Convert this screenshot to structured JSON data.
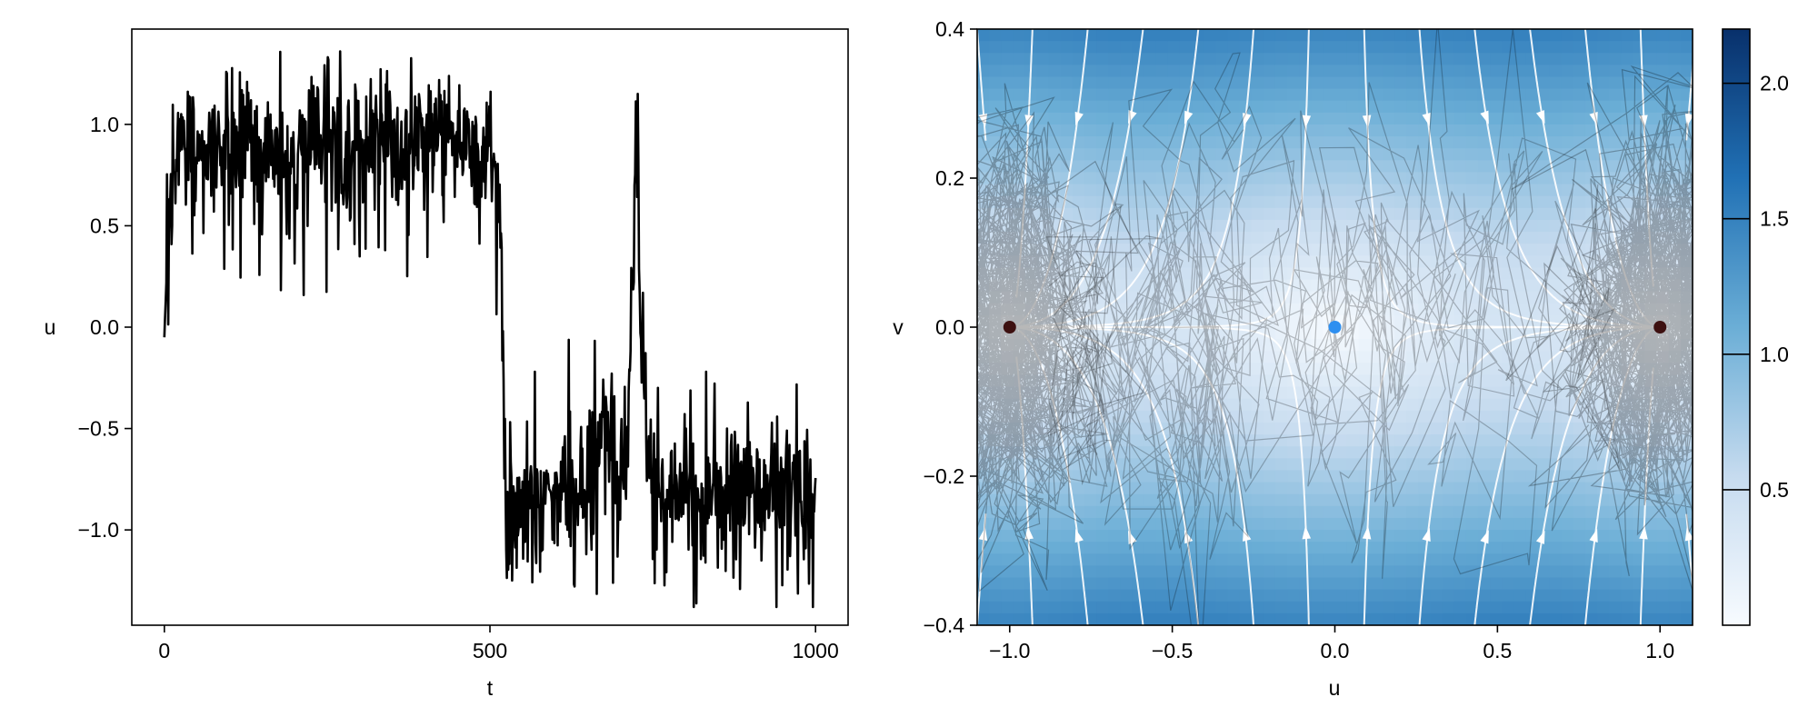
{
  "chart_data": [
    {
      "type": "line",
      "title": "",
      "xlabel": "t",
      "ylabel": "u",
      "xlim": [
        -50,
        1050
      ],
      "ylim": [
        -1.47,
        1.47
      ],
      "x_ticks": [
        0,
        500,
        1000
      ],
      "x_tick_labels": [
        "0",
        "500",
        "1000"
      ],
      "y_ticks": [
        -1.0,
        -0.5,
        0.0,
        0.5,
        1.0
      ],
      "y_tick_labels": [
        "−1.0",
        "−0.5",
        "0.0",
        "0.5",
        "1.0"
      ],
      "grid": false,
      "line_color": "#000000",
      "series": [
        {
          "x": [
            0,
            10,
            30,
            60,
            100,
            150,
            200,
            250,
            300,
            350,
            400,
            450,
            500,
            515,
            525,
            540,
            570,
            600,
            630,
            660,
            680,
            700,
            710,
            720,
            725,
            730,
            745,
            760,
            800,
            850,
            880,
            900,
            950,
            1000
          ],
          "values": [
            -0.05,
            0.85,
            0.95,
            0.85,
            0.88,
            0.9,
            0.82,
            0.95,
            0.92,
            0.88,
            0.95,
            0.9,
            0.85,
            0.7,
            -0.95,
            -0.95,
            -0.9,
            -0.88,
            -0.9,
            -0.75,
            -0.5,
            -0.85,
            -0.7,
            0.4,
            1.15,
            0.3,
            -0.8,
            -0.85,
            -0.8,
            -0.85,
            -0.7,
            -0.85,
            -0.8,
            -0.85
          ]
        }
      ]
    },
    {
      "type": "heatmap",
      "title": "",
      "xlabel": "u",
      "ylabel": "v",
      "xlim": [
        -1.1,
        1.1
      ],
      "ylim": [
        -0.4,
        0.4
      ],
      "x_ticks": [
        -1.0,
        -0.5,
        0.0,
        0.5,
        1.0
      ],
      "x_tick_labels": [
        "−1.0",
        "−0.5",
        "0.0",
        "0.5",
        "1.0"
      ],
      "y_ticks": [
        -0.4,
        -0.2,
        0.0,
        0.2,
        0.4
      ],
      "y_tick_labels": [
        "−0.4",
        "−0.2",
        "0.0",
        "0.2",
        "0.4"
      ],
      "colormap": "Blues",
      "colorbar": {
        "range": [
          0.0,
          2.2
        ],
        "ticks": [
          0.5,
          1.0,
          1.5,
          2.0
        ],
        "tick_labels": [
          "0.5",
          "1.0",
          "1.5",
          "2.0"
        ],
        "color_low": "#f7fbff",
        "color_high": "#08306b"
      },
      "overlays": {
        "streamlines": "white",
        "trajectories": "black, semi-transparent",
        "trajectory_clusters": [
          {
            "center_u": -1.0,
            "center_v": 0.0
          },
          {
            "center_u": 1.0,
            "center_v": 0.0
          }
        ]
      },
      "points": [
        {
          "u": -1.0,
          "v": 0.0,
          "color": "#3d1010"
        },
        {
          "u": 0.0,
          "v": 0.0,
          "color": "#2e8ff0"
        },
        {
          "u": 1.0,
          "v": 0.0,
          "color": "#3d1010"
        }
      ]
    }
  ]
}
